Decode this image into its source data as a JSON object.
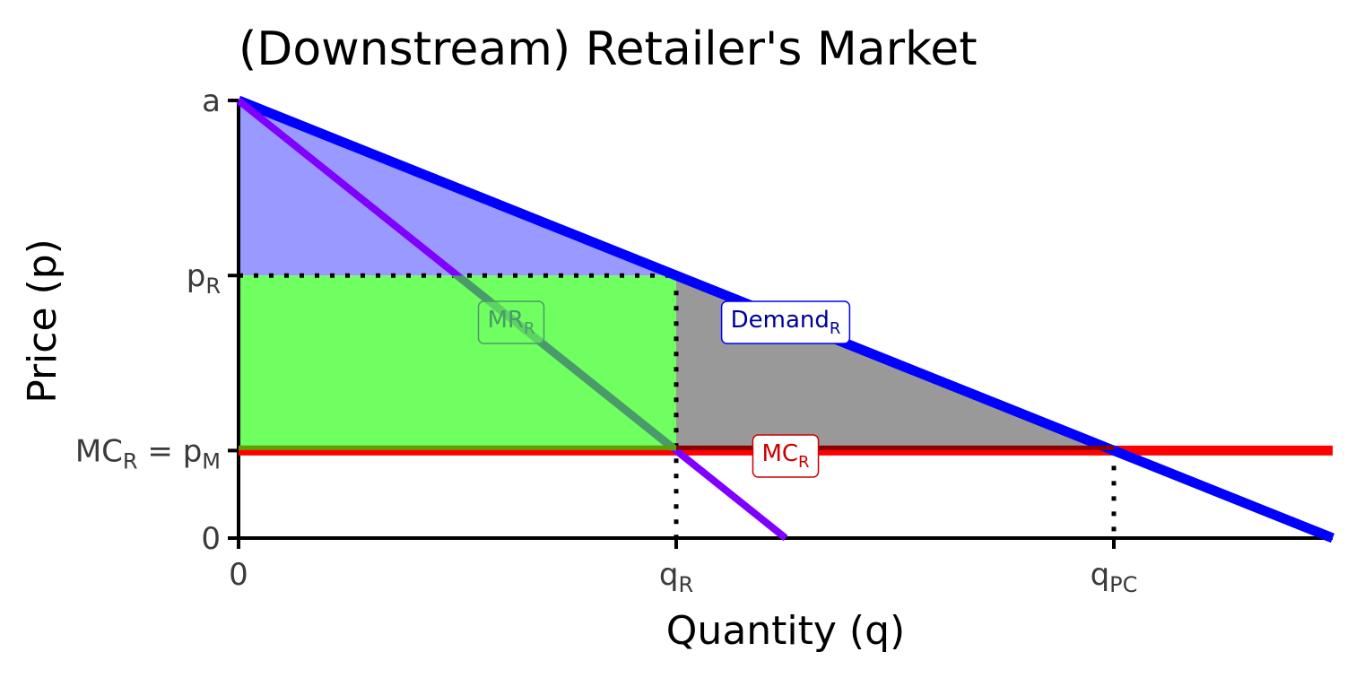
{
  "chart_data": {
    "type": "line",
    "title": "(Downstream) Retailer's Market",
    "xlabel": "Quantity (q)",
    "ylabel": "Price (p)",
    "xlim": [
      0,
      1
    ],
    "ylim": [
      0,
      1
    ],
    "grid": false,
    "x_ticks": [
      {
        "x": 0,
        "base": "0",
        "sub": ""
      },
      {
        "x": 0.4,
        "base": "q",
        "sub": "R"
      },
      {
        "x": 0.8,
        "base": "q",
        "sub": "PC"
      }
    ],
    "y_ticks": [
      {
        "y": 0,
        "base": "0",
        "sub": ""
      },
      {
        "y": 0.2,
        "base": "MC",
        "sub": "R",
        "base2": " = p",
        "sub2": "M"
      },
      {
        "y": 0.6,
        "base": "p",
        "sub": "R"
      },
      {
        "y": 1,
        "base": "a",
        "sub": ""
      }
    ],
    "series": [
      {
        "key": "demand",
        "color": "#0000ff",
        "points": [
          [
            0,
            1
          ],
          [
            1,
            0
          ]
        ],
        "label": {
          "base": "Demand",
          "sub": "R",
          "at": [
            0.5,
            0.5
          ],
          "text_color": "#000099",
          "border": "#0000ff"
        }
      },
      {
        "key": "mr",
        "color": "#8000ff",
        "points": [
          [
            0,
            1
          ],
          [
            0.5,
            0
          ]
        ],
        "label": {
          "base": "MR",
          "sub": "R",
          "at": [
            0.25,
            0.5
          ],
          "text_color": "#4a9a6a",
          "border": "#4a9a6a"
        }
      },
      {
        "key": "mc",
        "color": "#ff0000",
        "points": [
          [
            0,
            0.2
          ],
          [
            1,
            0.2
          ]
        ],
        "label": {
          "base": "MC",
          "sub": "R",
          "at": [
            0.5,
            0.2
          ],
          "text_color": "#cc0000",
          "border": "#cc0000"
        }
      }
    ],
    "regions": [
      {
        "key": "consumer-surplus",
        "color": "#9999ff",
        "points": [
          [
            0,
            1
          ],
          [
            0,
            0.6
          ],
          [
            0.4,
            0.6
          ]
        ]
      },
      {
        "key": "producer-surplus",
        "color": "#70ff60",
        "points": [
          [
            0,
            0.6
          ],
          [
            0.4,
            0.6
          ],
          [
            0.4,
            0.2
          ],
          [
            0,
            0.2
          ]
        ]
      },
      {
        "key": "deadweight-loss",
        "color": "#999999",
        "points": [
          [
            0.4,
            0.6
          ],
          [
            0.4,
            0.2
          ],
          [
            0.8,
            0.2
          ]
        ]
      }
    ],
    "guides": [
      {
        "key": "pR-horizontal",
        "points": [
          [
            0,
            0.6
          ],
          [
            0.4,
            0.6
          ]
        ]
      },
      {
        "key": "qR-vertical",
        "points": [
          [
            0.4,
            0.6
          ],
          [
            0.4,
            0
          ]
        ]
      },
      {
        "key": "qPC-vertical",
        "points": [
          [
            0.8,
            0.2
          ],
          [
            0.8,
            0
          ]
        ]
      }
    ]
  }
}
